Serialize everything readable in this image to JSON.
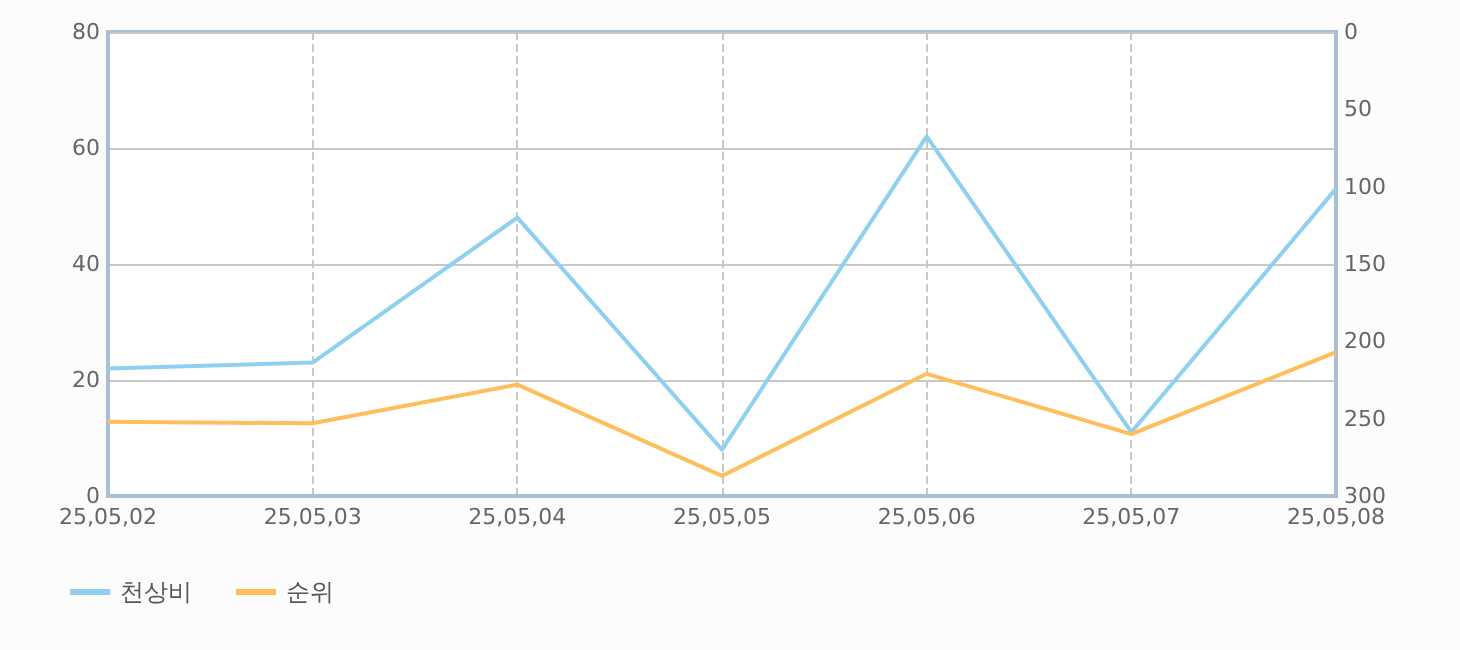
{
  "chart_data": {
    "type": "line",
    "categories": [
      "25,05,02",
      "25,05,03",
      "25,05,04",
      "25,05,05",
      "25,05,06",
      "25,05,07",
      "25,05,08"
    ],
    "series": [
      {
        "name": "천상비",
        "color": "#8fd0f0",
        "values": [
          22,
          23,
          48,
          8,
          62,
          11,
          53
        ]
      },
      {
        "name": "순위",
        "color": "#ffbe5c",
        "axis": "y2",
        "values": [
          252,
          253,
          228,
          287,
          221,
          260,
          207
        ]
      }
    ],
    "ylim": [
      0,
      80
    ],
    "yticks": [
      0,
      20,
      40,
      60,
      80
    ],
    "y2lim": [
      300,
      0
    ],
    "y2ticks": [
      0,
      50,
      100,
      150,
      200,
      250,
      300
    ],
    "grid": true,
    "legend": "bottom left",
    "marker": "none",
    "line_style": "solid"
  }
}
